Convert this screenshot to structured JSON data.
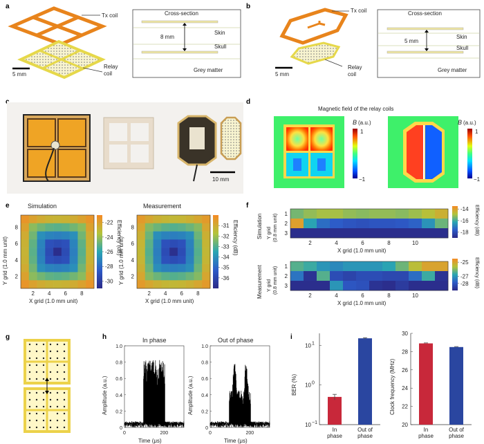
{
  "panels": {
    "a": {
      "letter": "a",
      "tx_label": "Tx coil",
      "relay_label": "Relay\ncoil",
      "cross_section": "Cross-section",
      "skin": "Skin",
      "skull": "Skull",
      "grey": "Grey matter",
      "distance": "8 mm",
      "scale": "5 mm"
    },
    "b": {
      "letter": "b",
      "tx_label": "Tx coil",
      "relay_label": "Relay\ncoil",
      "cross_section": "Cross-section",
      "skin": "Skin",
      "skull": "Skull",
      "grey": "Grey matter",
      "distance": "5 mm",
      "scale": "5 mm"
    },
    "c": {
      "letter": "c",
      "scale": "10 mm"
    },
    "d": {
      "letter": "d",
      "title": "Magnetic field of the relay coils",
      "bar_label": "B (a.u.)",
      "bar_max": "1",
      "bar_min": "−1"
    },
    "e": {
      "letter": "e"
    },
    "f": {
      "letter": "f"
    },
    "g": {
      "letter": "g"
    },
    "h": {
      "letter": "h"
    },
    "i": {
      "letter": "i"
    }
  },
  "colors": {
    "orange": "#e8841c",
    "yellow": "#f1e06a",
    "red": "#c8283a",
    "blue": "#2a46a0"
  },
  "chart_data": [
    {
      "id": "e-sim",
      "type": "heatmap",
      "title": "Simulation",
      "xlabel": "X grid (1.0 mm unit)",
      "ylabel": "Y grid (1.0 mm unit)",
      "colorbar_label": "Efficiency (dB)",
      "x_ticks": [
        "2",
        "4",
        "6",
        "8"
      ],
      "y_ticks": [
        "2",
        "4",
        "6",
        "8"
      ],
      "colorbar_ticks": [
        "-22",
        "-24",
        "-26",
        "-28",
        "-30"
      ],
      "clim": [
        -31,
        -21
      ],
      "n": 9,
      "edge": -21.5,
      "center": -30.8
    },
    {
      "id": "e-meas",
      "type": "heatmap",
      "title": "Measurement",
      "xlabel": "X grid (1.0 mm unit)",
      "ylabel": "Y grid (1.0 mm unit)",
      "colorbar_label": "Efficiency (dB)",
      "x_ticks": [
        "2",
        "4",
        "6",
        "8"
      ],
      "y_ticks": [
        "2",
        "4",
        "6",
        "8"
      ],
      "colorbar_ticks": [
        "-31",
        "-32",
        "-33",
        "-34",
        "-35",
        "-36"
      ],
      "clim": [
        -37,
        -30
      ],
      "n": 9,
      "edge": -30.5,
      "center": -36.8
    },
    {
      "id": "f-sim",
      "type": "heatmap",
      "side_label": "Simulation",
      "ylabel": "Y grid\n(0.8 mm unit)",
      "xlabel": "X grid (1.0 mm unit)",
      "colorbar_label": "Efficiency (dB)",
      "x_ticks": [
        "2",
        "4",
        "6",
        "8",
        "10"
      ],
      "y_ticks": [
        "1",
        "2",
        "3"
      ],
      "colorbar_ticks": [
        "-14",
        "-16",
        "-18"
      ],
      "clim": [
        -19,
        -13.5
      ],
      "rows": [
        [
          -15.5,
          -15.2,
          -15.0,
          -15.0,
          -15.2,
          -15.3,
          -15.2,
          -15.2,
          -15.3,
          -15.1,
          -14.8,
          -14.4
        ],
        [
          -14.0,
          -16.3,
          -17.3,
          -17.6,
          -17.8,
          -17.9,
          -17.8,
          -17.8,
          -17.7,
          -17.5,
          -16.6,
          -15.6
        ],
        [
          -18.9,
          -18.9,
          -18.9,
          -18.9,
          -18.9,
          -18.9,
          -18.9,
          -18.9,
          -18.9,
          -18.9,
          -18.9,
          -18.9
        ]
      ]
    },
    {
      "id": "f-meas",
      "type": "heatmap",
      "side_label": "Measurement",
      "ylabel": "Y grid\n(0.8 mm unit)",
      "xlabel": "X grid (1.0 mm unit)",
      "colorbar_label": "Efficiency (dB)",
      "x_ticks": [
        "2",
        "4",
        "6",
        "8",
        "10"
      ],
      "y_ticks": [
        "1",
        "2",
        "3"
      ],
      "colorbar_ticks": [
        "-25",
        "-27",
        "-28"
      ],
      "clim": [
        -29,
        -24.5
      ],
      "rows": [
        [
          -26.4,
          -26.6,
          -27.0,
          -27.2,
          -27.0,
          -27.0,
          -27.0,
          -26.8,
          -26.2,
          -25.5,
          -25.0,
          -25.0
        ],
        [
          -27.5,
          -28.8,
          -26.4,
          -28.2,
          -28.4,
          -28.2,
          -28.2,
          -28.3,
          -28.3,
          -27.6,
          -26.6,
          -28.8
        ],
        [
          -28.9,
          -28.9,
          -28.9,
          -27.0,
          -28.0,
          -28.1,
          -28.8,
          -28.9,
          -28.6,
          -28.9,
          -28.9,
          -28.9
        ]
      ]
    },
    {
      "id": "h-in",
      "type": "line",
      "title": "In phase",
      "xlabel": "Time (μs)",
      "ylabel": "Amplitude (a.u.)",
      "xlim": [
        0,
        300
      ],
      "ylim": [
        0,
        1
      ],
      "x_ticks": [
        "0",
        "200"
      ],
      "y_ticks": [
        "0",
        "0.2",
        "0.4",
        "0.6",
        "0.8",
        "1.0"
      ]
    },
    {
      "id": "h-out",
      "type": "line",
      "title": "Out of phase",
      "xlabel": "Time (μs)",
      "ylabel": "Amplitude (a.u.)",
      "xlim": [
        0,
        300
      ],
      "ylim": [
        0,
        1
      ],
      "x_ticks": [
        "0",
        "200"
      ],
      "y_ticks": [
        "0",
        "0.2",
        "0.4",
        "0.6",
        "0.8",
        "1.0"
      ]
    },
    {
      "id": "i-ber",
      "type": "bar",
      "ylabel": "BER (%)",
      "scale": "log",
      "ylim": [
        0.1,
        20
      ],
      "categories": [
        "In\nphase",
        "Out of\nphase"
      ],
      "values": [
        0.5,
        15
      ],
      "errors": [
        0.08,
        0.5
      ],
      "colors": [
        "#c8283a",
        "#2a46a0"
      ],
      "y_ticks": [
        "10^1",
        "10^0",
        "10^−1"
      ]
    },
    {
      "id": "i-clk",
      "type": "bar",
      "ylabel": "Clock frequency (MHz)",
      "ylim": [
        20,
        30
      ],
      "categories": [
        "In\nphase",
        "Out of\nphase"
      ],
      "values": [
        28.9,
        28.5
      ],
      "errors": [
        0.05,
        0.05
      ],
      "colors": [
        "#c8283a",
        "#2a46a0"
      ],
      "y_ticks": [
        "20",
        "22",
        "24",
        "26",
        "28",
        "30"
      ]
    }
  ]
}
